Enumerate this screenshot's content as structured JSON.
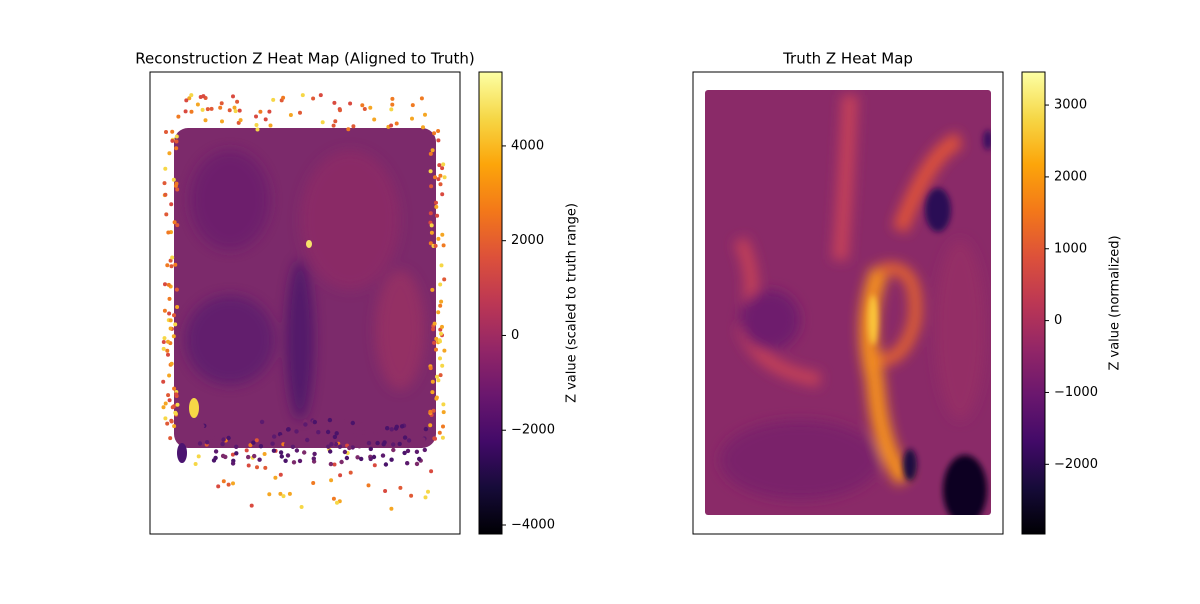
{
  "chart_data": [
    {
      "type": "heatmap",
      "title": "Reconstruction Z Heat Map (Aligned to Truth)",
      "colorbar_label": "Z value (scaled to truth range)",
      "colormap": "inferno",
      "clim": [
        -4190,
        5560
      ],
      "cticks": [
        {
          "value": -4000,
          "label": "−4000"
        },
        {
          "value": -2000,
          "label": "−2000"
        },
        0,
        2000,
        4000
      ]
    },
    {
      "type": "heatmap",
      "title": "Truth Z Heat Map",
      "colorbar_label": "Z value (normalized)",
      "colormap": "inferno",
      "clim": [
        -2970,
        3460
      ],
      "cticks": [
        {
          "value": -2000,
          "label": "−2000"
        },
        {
          "value": -1000,
          "label": "−1000"
        },
        0,
        1000,
        2000,
        3000
      ]
    }
  ]
}
